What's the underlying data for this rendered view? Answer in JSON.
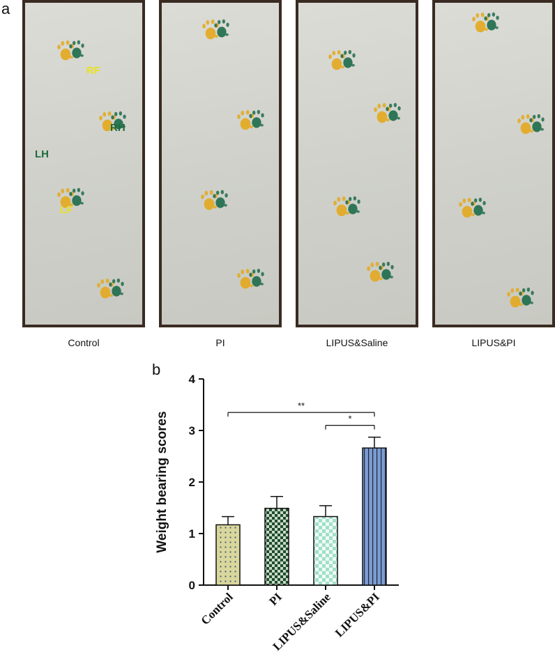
{
  "panel_a": {
    "letter": "a",
    "photos": [
      {
        "caption": "Control",
        "labels": [
          "RF",
          "RH",
          "LH",
          "LF"
        ]
      },
      {
        "caption": "PI"
      },
      {
        "caption": "LIPUS&Saline"
      },
      {
        "caption": "LIPUS&PI"
      }
    ],
    "colors": {
      "fore_paw": "#e3a91e",
      "hind_paw": "#1d6b4a",
      "fore_label": "#e8e21a",
      "hind_label": "#1e6b3d",
      "frame": "#3a2b22"
    }
  },
  "panel_b": {
    "letter": "b"
  },
  "chart_data": {
    "type": "bar",
    "title": "",
    "xlabel": "",
    "ylabel": "Weight bearing scores",
    "categories": [
      "Control",
      "PI",
      "LIPUS&Saline",
      "LIPUS&PI"
    ],
    "values": [
      1.17,
      1.49,
      1.33,
      2.66
    ],
    "errors": [
      0.16,
      0.23,
      0.21,
      0.21
    ],
    "ylim": [
      0,
      4
    ],
    "yticks": [
      0,
      1,
      2,
      3,
      4
    ],
    "grid": false,
    "legend": "none",
    "bar_fills": [
      "dots-khaki",
      "checker-dark-green",
      "checker-mint",
      "vertical-lines-blue"
    ],
    "significance": [
      {
        "from": "Control",
        "to": "LIPUS&PI",
        "label": "**",
        "y": 3.35
      },
      {
        "from": "LIPUS&Saline",
        "to": "LIPUS&PI",
        "label": "*",
        "y": 3.1
      }
    ]
  }
}
